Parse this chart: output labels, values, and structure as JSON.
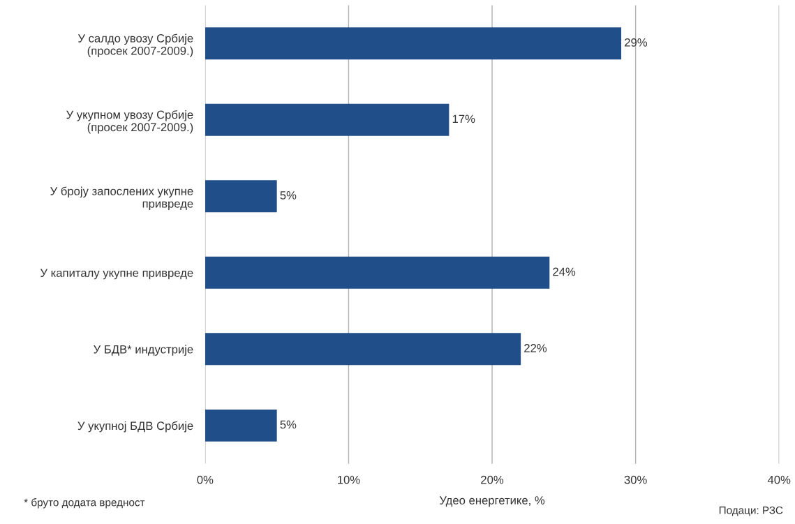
{
  "chart_data": {
    "type": "bar",
    "orientation": "horizontal",
    "categories": [
      "У салдо увозу Србије\n(просек 2007-2009.)",
      "У укупном увозу Србије\n(просек 2007-2009.)",
      "У броју запослених укупне\nпривреде",
      "У капиталу укупне привреде",
      "У БДВ* индустрије",
      "У укупној БДВ Србије"
    ],
    "values": [
      29,
      17,
      5,
      24,
      22,
      5
    ],
    "value_labels": [
      "29%",
      "17%",
      "5%",
      "24%",
      "22%",
      "5%"
    ],
    "color": "#1f4e89",
    "xlim": [
      0,
      40
    ],
    "xticks": [
      {
        "value": 0,
        "label": "0%"
      },
      {
        "value": 10,
        "label": "10%"
      },
      {
        "value": 20,
        "label": "20%"
      },
      {
        "value": 30,
        "label": "30%"
      },
      {
        "value": 40,
        "label": "40%"
      }
    ],
    "xlabel": "Удео енергетике, %",
    "grid": "x",
    "annotations": [
      "* бруто додата вредност",
      "Подаци: РЗС"
    ]
  }
}
